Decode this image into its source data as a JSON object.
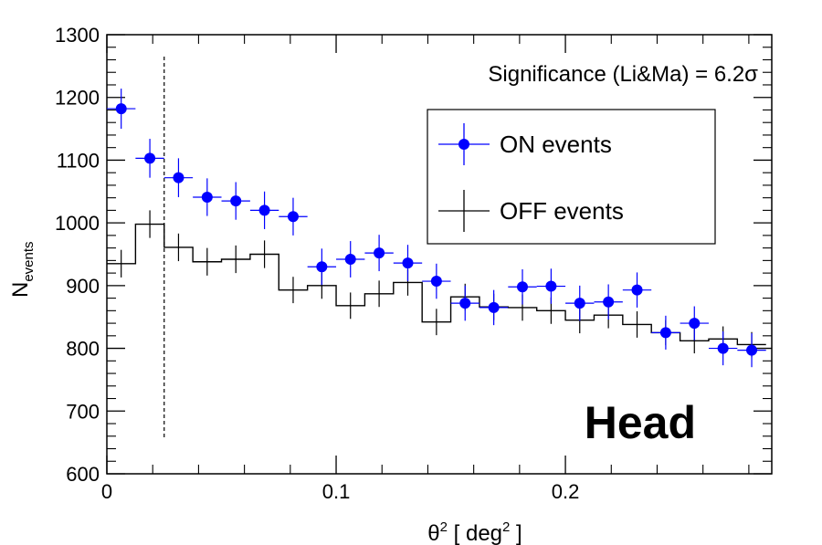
{
  "chart_data": {
    "type": "scatter",
    "title": "",
    "xlabel": "θ2 [ deg2 ]",
    "xlabel_parts": {
      "main": "θ",
      "sup1": "2",
      "mid": " [ deg",
      "sup2": "2",
      "end": " ]"
    },
    "ylabel": "Nevents",
    "ylabel_parts": {
      "main": "N",
      "sub": "events"
    },
    "xlim": [
      0,
      0.29
    ],
    "ylim": [
      600,
      1300
    ],
    "x_ticks": [
      0,
      0.1,
      0.2
    ],
    "x_tick_labels": [
      "0",
      "0.1",
      "0.2"
    ],
    "y_ticks": [
      600,
      700,
      800,
      900,
      1000,
      1100,
      1200,
      1300
    ],
    "y_tick_labels": [
      "600",
      "700",
      "800",
      "900",
      "1000",
      "1100",
      "1200",
      "1300"
    ],
    "bin_width": 0.0125,
    "cut_line_x": 0.025,
    "cut_line_range": [
      655,
      1265
    ],
    "series": [
      {
        "name": "ON events",
        "style": "points",
        "color": "#0000ff",
        "x": [
          0.00625,
          0.01875,
          0.03125,
          0.04375,
          0.05625,
          0.06875,
          0.08125,
          0.09375,
          0.10625,
          0.11875,
          0.13125,
          0.14375,
          0.15625,
          0.16875,
          0.18125,
          0.19375,
          0.20625,
          0.21875,
          0.23125,
          0.24375,
          0.25625,
          0.26875,
          0.28125
        ],
        "values": [
          1182,
          1103,
          1072,
          1041,
          1035,
          1020,
          1010,
          930,
          942,
          952,
          936,
          907,
          872,
          865,
          898,
          899,
          872,
          874,
          893,
          825,
          840,
          800,
          797
        ],
        "errors": [
          32,
          31,
          31,
          30,
          30,
          30,
          30,
          29,
          29,
          29,
          29,
          28,
          28,
          28,
          28,
          28,
          28,
          28,
          28,
          27,
          27,
          27,
          27
        ]
      },
      {
        "name": "OFF events",
        "style": "step",
        "color": "#000000",
        "x": [
          0.00625,
          0.01875,
          0.03125,
          0.04375,
          0.05625,
          0.06875,
          0.08125,
          0.09375,
          0.10625,
          0.11875,
          0.13125,
          0.14375,
          0.15625,
          0.16875,
          0.18125,
          0.19375,
          0.20625,
          0.21875,
          0.23125,
          0.24375,
          0.25625,
          0.26875,
          0.28125
        ],
        "values": [
          935,
          998,
          961,
          938,
          942,
          950,
          893,
          900,
          868,
          887,
          905,
          842,
          882,
          866,
          865,
          860,
          845,
          853,
          838,
          825,
          812,
          815,
          806
        ],
        "errors": [
          22,
          22,
          22,
          22,
          22,
          22,
          21,
          21,
          21,
          21,
          21,
          21,
          21,
          21,
          21,
          21,
          21,
          21,
          21,
          20,
          20,
          20,
          20
        ]
      }
    ],
    "legend": {
      "placement": "top-right",
      "entries": [
        "ON events",
        "OFF events"
      ]
    },
    "annotations": {
      "significance": "Significance (Li&Ma) = 6.2σ",
      "corner_label": "Head"
    },
    "grid": false
  }
}
